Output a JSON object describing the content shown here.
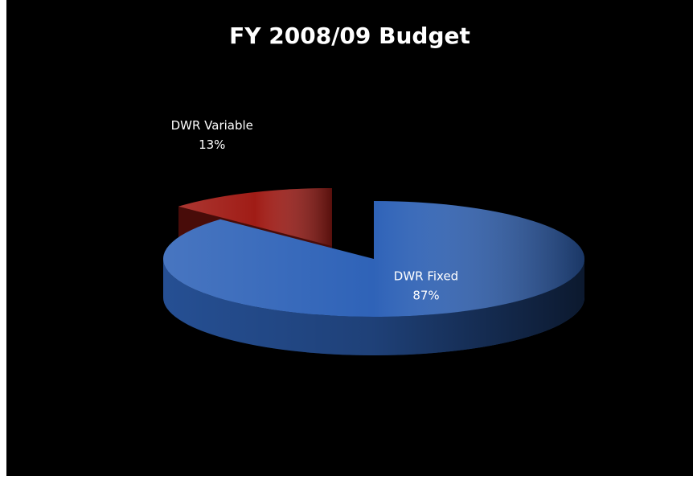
{
  "chart_data": {
    "type": "pie",
    "title": "FY 2008/09 Budget",
    "categories": [
      "DWR Fixed",
      "DWR Variable"
    ],
    "values": [
      87,
      13
    ],
    "value_labels": [
      "87%",
      "13%"
    ],
    "colors": [
      "#2f63b8",
      "#a01c16"
    ]
  }
}
